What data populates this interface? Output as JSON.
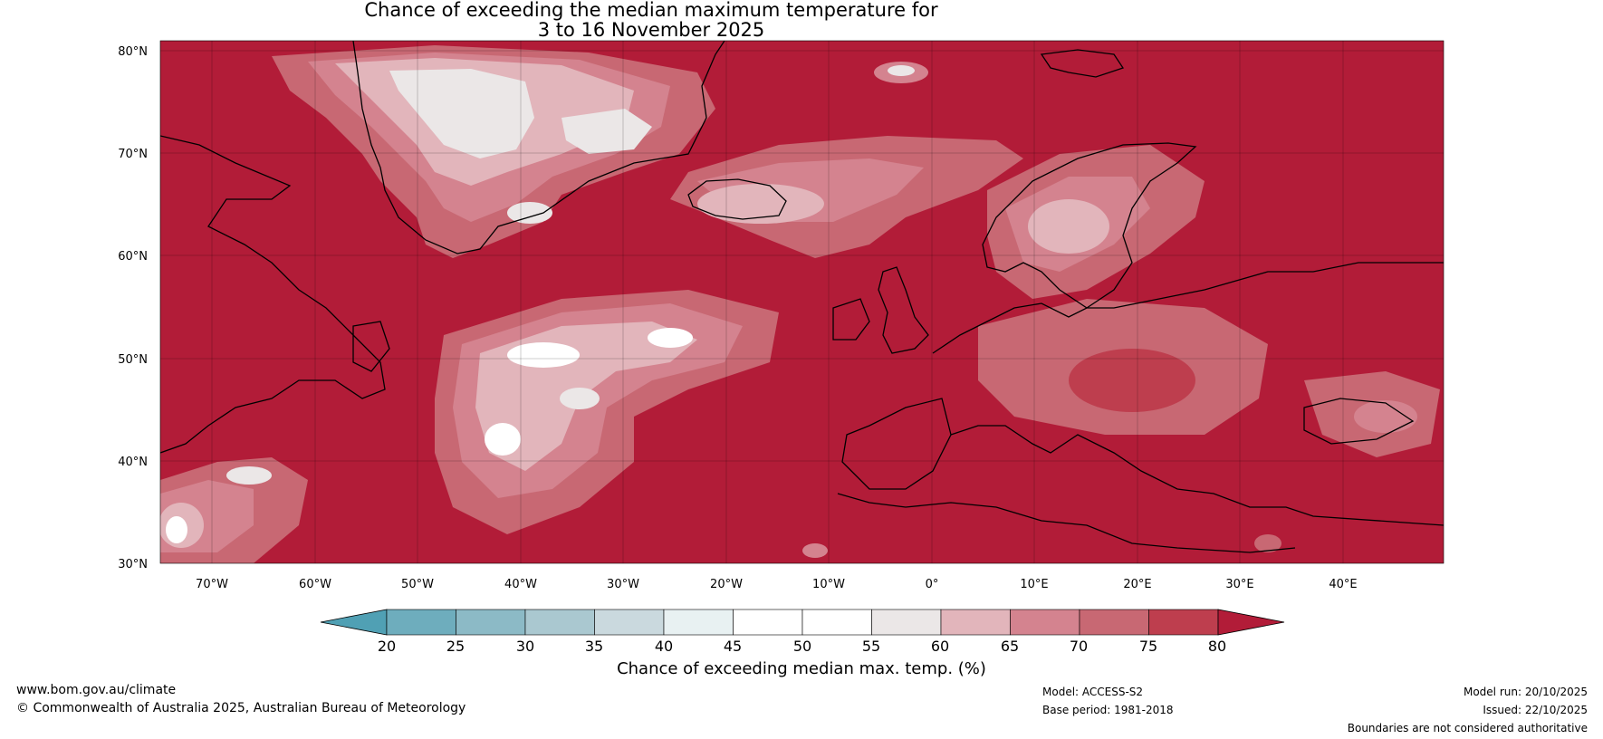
{
  "title_line1": "Chance of exceeding the median maximum temperature for",
  "title_line2": "3 to 16 November 2025",
  "background_color": "#b21c38",
  "lat_ticks": [
    "80°N",
    "70°N",
    "60°N",
    "50°N",
    "40°N",
    "30°N"
  ],
  "lon_ticks": [
    "70°W",
    "60°W",
    "50°W",
    "40°W",
    "30°W",
    "20°W",
    "10°W",
    "0°",
    "10°E",
    "20°E",
    "30°E",
    "40°E"
  ],
  "colorbar": {
    "title": "Chance of exceeding median max. temp. (%)",
    "ticks": [
      "20",
      "25",
      "30",
      "35",
      "40",
      "45",
      "50",
      "55",
      "60",
      "65",
      "70",
      "75",
      "80"
    ],
    "colors": [
      "#50a0b4",
      "#6eadbd",
      "#8cbac6",
      "#aac8d0",
      "#cad9de",
      "#e8f1f2",
      "#ffffff",
      "#ffffff",
      "#ebe7e7",
      "#e2b5bb",
      "#d4838f",
      "#c86873",
      "#be3e4e",
      "#b21c38"
    ]
  },
  "footer": {
    "website": "www.bom.gov.au/climate",
    "copyright": "© Commonwealth of Australia 2025, Australian Bureau of Meteorology",
    "model": "Model: ACCESS-S2",
    "base_period": "Base period: 1981-2018",
    "model_run": "Model run: 20/10/2025",
    "issued": "Issued: 22/10/2025",
    "disclaimer": "Boundaries are not considered authoritative"
  }
}
